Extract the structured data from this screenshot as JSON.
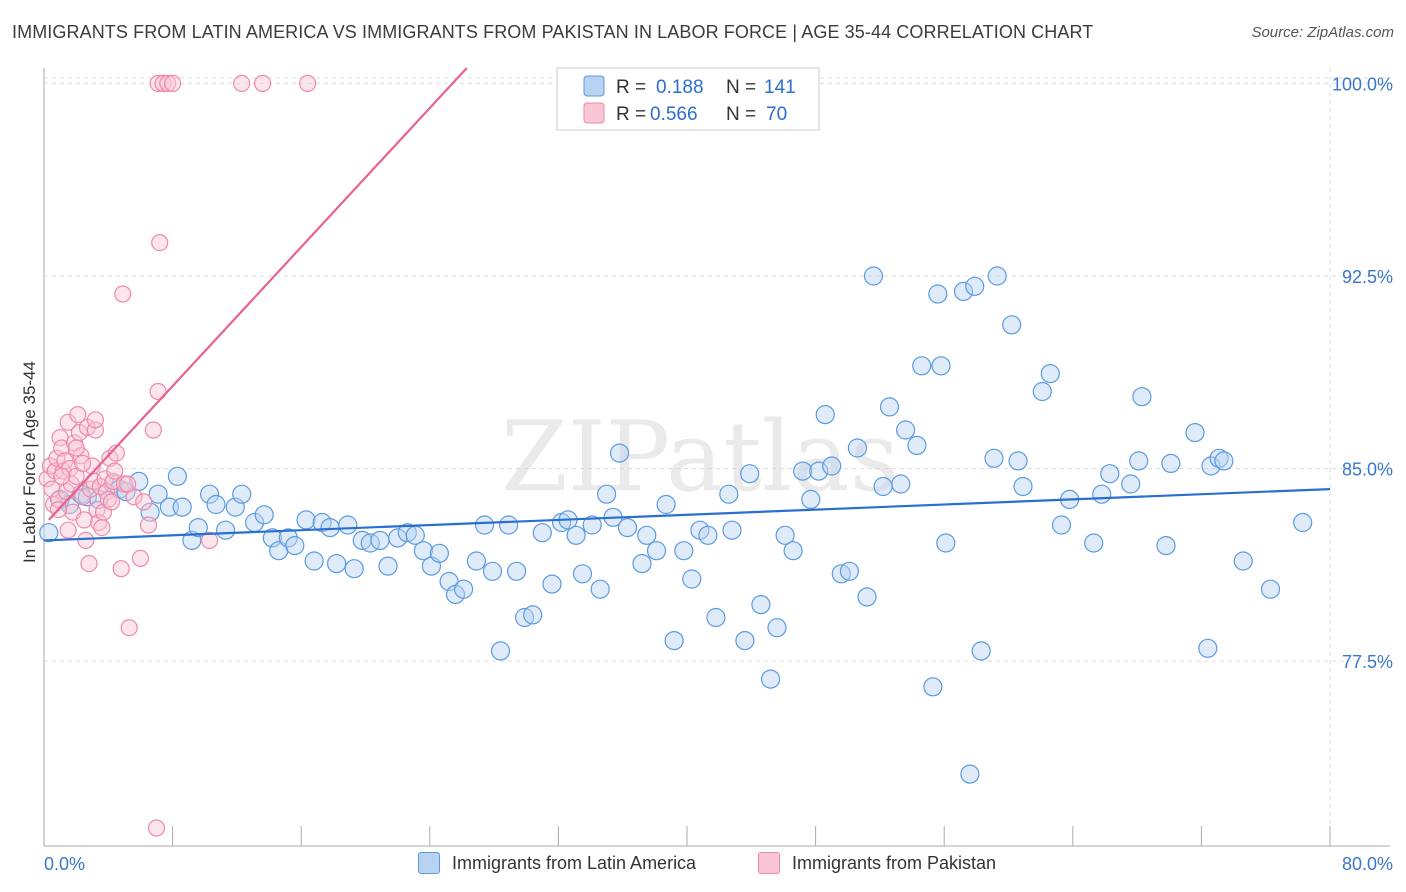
{
  "title": "IMMIGRANTS FROM LATIN AMERICA VS IMMIGRANTS FROM PAKISTAN IN LABOR FORCE | AGE 35-44 CORRELATION CHART",
  "source": "Source: ZipAtlas.com",
  "watermark": "ZIPatlas",
  "colors": {
    "blue": "#5b9be0",
    "blue_fill": "#b8d3f2",
    "blue_line": "#2a6fd0",
    "pink": "#ee8aa8",
    "pink_fill": "#f8c6d5",
    "pink_line": "#e8628f",
    "axis_text": "#3a78c9",
    "grid": "#dddddd"
  },
  "stats_legend": [
    {
      "r_label": "R =",
      "r_value": "0.188",
      "n_label": "N =",
      "n_value": "141"
    },
    {
      "r_label": "R =",
      "r_value": "0.566",
      "n_label": "N =",
      "n_value": "70"
    }
  ],
  "bottom_legend": [
    "Immigrants from Latin America",
    "Immigrants from Pakistan"
  ],
  "chart_data": {
    "type": "scatter",
    "title": "IMMIGRANTS FROM LATIN AMERICA VS IMMIGRANTS FROM PAKISTAN IN LABOR FORCE | AGE 35-44 CORRELATION CHART",
    "xlabel": "",
    "ylabel": "In Labor Force | Age 35-44",
    "xlim": [
      0,
      80
    ],
    "ylim": [
      70.3,
      100.6
    ],
    "x_tick_labels": [
      "0.0%",
      "80.0%"
    ],
    "y_ticks": [
      77.5,
      85.0,
      92.5,
      100.0
    ],
    "y_tick_labels": [
      "77.5%",
      "85.0%",
      "92.5%",
      "100.0%"
    ],
    "grid": true,
    "legend_position": "top-center",
    "series": [
      {
        "name": "Immigrants from Latin America",
        "color": "#5b9be0",
        "trend": {
          "x": [
            0,
            80
          ],
          "y": [
            82.2,
            84.2
          ]
        },
        "points": [
          [
            0.3,
            82.5
          ],
          [
            1.0,
            83.8
          ],
          [
            1.6,
            83.6
          ],
          [
            2.3,
            84.0
          ],
          [
            2.7,
            83.9
          ],
          [
            3.4,
            83.8
          ],
          [
            4.3,
            84.4
          ],
          [
            4.7,
            84.2
          ],
          [
            5.1,
            84.1
          ],
          [
            5.9,
            84.5
          ],
          [
            6.6,
            83.3
          ],
          [
            7.1,
            84.0
          ],
          [
            7.8,
            83.5
          ],
          [
            8.3,
            84.7
          ],
          [
            8.6,
            83.5
          ],
          [
            9.2,
            82.2
          ],
          [
            9.6,
            82.7
          ],
          [
            10.3,
            84.0
          ],
          [
            10.7,
            83.6
          ],
          [
            11.3,
            82.6
          ],
          [
            11.9,
            83.5
          ],
          [
            12.3,
            84.0
          ],
          [
            13.1,
            82.9
          ],
          [
            13.7,
            83.2
          ],
          [
            14.2,
            82.3
          ],
          [
            14.6,
            81.8
          ],
          [
            15.2,
            82.3
          ],
          [
            15.6,
            82.0
          ],
          [
            16.3,
            83.0
          ],
          [
            16.8,
            81.4
          ],
          [
            17.3,
            82.9
          ],
          [
            17.8,
            82.7
          ],
          [
            18.2,
            81.3
          ],
          [
            18.9,
            82.8
          ],
          [
            19.3,
            81.1
          ],
          [
            19.8,
            82.2
          ],
          [
            20.3,
            82.1
          ],
          [
            20.9,
            82.2
          ],
          [
            21.4,
            81.2
          ],
          [
            22.0,
            82.3
          ],
          [
            22.6,
            82.5
          ],
          [
            23.1,
            82.4
          ],
          [
            23.6,
            81.8
          ],
          [
            24.1,
            81.2
          ],
          [
            24.6,
            81.7
          ],
          [
            25.2,
            80.6
          ],
          [
            25.6,
            80.1
          ],
          [
            26.1,
            80.3
          ],
          [
            26.9,
            81.4
          ],
          [
            27.4,
            82.8
          ],
          [
            27.9,
            81.0
          ],
          [
            28.4,
            77.9
          ],
          [
            28.9,
            82.8
          ],
          [
            29.4,
            81.0
          ],
          [
            29.9,
            79.2
          ],
          [
            30.4,
            79.3
          ],
          [
            31.0,
            82.5
          ],
          [
            31.6,
            80.5
          ],
          [
            32.2,
            82.9
          ],
          [
            32.6,
            83.0
          ],
          [
            33.1,
            82.4
          ],
          [
            33.5,
            80.9
          ],
          [
            34.1,
            82.8
          ],
          [
            34.6,
            80.3
          ],
          [
            35.0,
            84.0
          ],
          [
            35.4,
            83.1
          ],
          [
            35.8,
            85.6
          ],
          [
            36.3,
            82.7
          ],
          [
            37.2,
            81.3
          ],
          [
            37.5,
            82.4
          ],
          [
            38.1,
            81.8
          ],
          [
            38.7,
            83.6
          ],
          [
            39.2,
            78.3
          ],
          [
            39.8,
            81.8
          ],
          [
            40.3,
            80.7
          ],
          [
            40.8,
            82.6
          ],
          [
            41.3,
            82.4
          ],
          [
            41.8,
            79.2
          ],
          [
            42.6,
            84.0
          ],
          [
            42.8,
            82.6
          ],
          [
            43.6,
            78.3
          ],
          [
            43.9,
            84.8
          ],
          [
            44.6,
            79.7
          ],
          [
            45.2,
            76.8
          ],
          [
            45.6,
            78.8
          ],
          [
            46.1,
            82.4
          ],
          [
            46.6,
            81.8
          ],
          [
            47.2,
            84.9
          ],
          [
            47.7,
            83.8
          ],
          [
            48.2,
            84.9
          ],
          [
            48.6,
            87.1
          ],
          [
            49.0,
            85.1
          ],
          [
            49.6,
            80.9
          ],
          [
            50.1,
            81.0
          ],
          [
            50.6,
            85.8
          ],
          [
            51.2,
            80.0
          ],
          [
            51.6,
            92.5
          ],
          [
            52.2,
            84.3
          ],
          [
            52.6,
            87.4
          ],
          [
            53.3,
            84.4
          ],
          [
            53.6,
            86.5
          ],
          [
            54.3,
            85.9
          ],
          [
            54.6,
            89.0
          ],
          [
            55.3,
            76.5
          ],
          [
            55.6,
            91.8
          ],
          [
            55.8,
            89.0
          ],
          [
            56.1,
            82.1
          ],
          [
            57.2,
            91.9
          ],
          [
            57.6,
            73.1
          ],
          [
            57.9,
            92.1
          ],
          [
            58.3,
            77.9
          ],
          [
            59.1,
            85.4
          ],
          [
            59.3,
            92.5
          ],
          [
            60.2,
            90.6
          ],
          [
            60.6,
            85.3
          ],
          [
            60.9,
            84.3
          ],
          [
            62.1,
            88.0
          ],
          [
            62.6,
            88.7
          ],
          [
            63.3,
            82.8
          ],
          [
            63.8,
            83.8
          ],
          [
            65.3,
            82.1
          ],
          [
            65.8,
            84.0
          ],
          [
            66.3,
            84.8
          ],
          [
            67.6,
            84.4
          ],
          [
            68.1,
            85.3
          ],
          [
            68.3,
            87.8
          ],
          [
            69.8,
            82.0
          ],
          [
            70.1,
            85.2
          ],
          [
            71.6,
            86.4
          ],
          [
            72.4,
            78.0
          ],
          [
            72.6,
            85.1
          ],
          [
            73.1,
            85.4
          ],
          [
            73.4,
            85.3
          ],
          [
            74.6,
            81.4
          ],
          [
            76.3,
            80.3
          ],
          [
            78.3,
            82.9
          ]
        ]
      },
      {
        "name": "Immigrants from Pakistan",
        "color": "#ee8aa8",
        "trend": {
          "x": [
            0.3,
            26.3
          ],
          "y": [
            83.0,
            100.6
          ]
        },
        "points": [
          [
            0.2,
            84.6
          ],
          [
            0.4,
            85.1
          ],
          [
            0.5,
            84.2
          ],
          [
            0.6,
            83.6
          ],
          [
            0.7,
            84.9
          ],
          [
            0.8,
            85.4
          ],
          [
            0.9,
            83.8
          ],
          [
            1.0,
            86.2
          ],
          [
            1.1,
            85.8
          ],
          [
            1.2,
            84.9
          ],
          [
            1.3,
            85.3
          ],
          [
            1.4,
            84.1
          ],
          [
            1.5,
            86.8
          ],
          [
            1.6,
            85.0
          ],
          [
            1.7,
            84.4
          ],
          [
            1.8,
            83.3
          ],
          [
            1.9,
            86.0
          ],
          [
            2.0,
            84.7
          ],
          [
            2.1,
            87.1
          ],
          [
            2.2,
            86.4
          ],
          [
            2.3,
            85.5
          ],
          [
            2.4,
            83.9
          ],
          [
            2.5,
            83.0
          ],
          [
            2.6,
            82.2
          ],
          [
            2.7,
            86.6
          ],
          [
            2.8,
            81.3
          ],
          [
            2.9,
            84.2
          ],
          [
            3.0,
            85.1
          ],
          [
            3.1,
            84.5
          ],
          [
            3.2,
            86.5
          ],
          [
            3.3,
            83.4
          ],
          [
            3.4,
            82.9
          ],
          [
            3.5,
            84.3
          ],
          [
            3.6,
            82.7
          ],
          [
            3.7,
            83.3
          ],
          [
            3.8,
            84.6
          ],
          [
            3.9,
            84.1
          ],
          [
            4.0,
            83.8
          ],
          [
            4.1,
            85.4
          ],
          [
            4.2,
            83.7
          ],
          [
            4.3,
            84.5
          ],
          [
            4.5,
            85.6
          ],
          [
            4.8,
            81.1
          ],
          [
            5.0,
            84.4
          ],
          [
            5.3,
            78.8
          ],
          [
            5.6,
            83.9
          ],
          [
            6.0,
            81.5
          ],
          [
            6.5,
            82.8
          ],
          [
            6.8,
            86.5
          ],
          [
            7.0,
            71.0
          ],
          [
            7.1,
            88.0
          ],
          [
            7.1,
            100.0
          ],
          [
            7.2,
            93.8
          ],
          [
            7.4,
            100.0
          ],
          [
            7.7,
            100.0
          ],
          [
            8.0,
            100.0
          ],
          [
            4.9,
            91.8
          ],
          [
            12.3,
            100.0
          ],
          [
            13.6,
            100.0
          ],
          [
            16.4,
            100.0
          ],
          [
            10.3,
            82.2
          ],
          [
            3.2,
            86.9
          ],
          [
            2.4,
            85.2
          ],
          [
            1.1,
            84.7
          ],
          [
            5.2,
            84.4
          ],
          [
            6.2,
            83.7
          ],
          [
            0.9,
            83.4
          ],
          [
            1.5,
            82.6
          ],
          [
            2.0,
            85.8
          ],
          [
            4.4,
            84.9
          ]
        ]
      }
    ]
  }
}
